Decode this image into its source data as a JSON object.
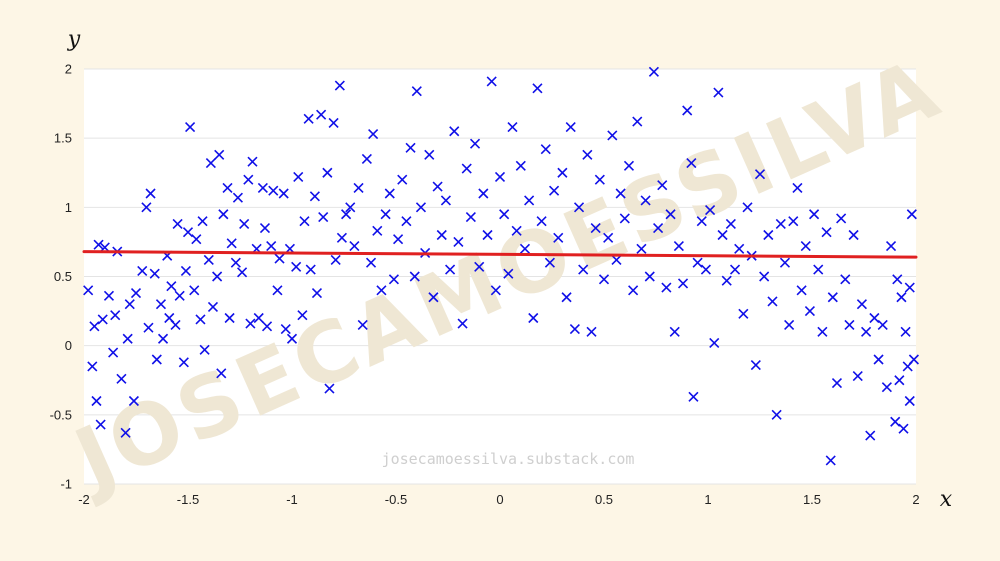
{
  "watermark": "JOSECAMOESSILVA",
  "site_url": "josecamoessilva.substack.com",
  "chart_data": {
    "type": "scatter",
    "xlabel": "x",
    "ylabel": "y",
    "xlim": [
      -2,
      2
    ],
    "ylim": [
      -1,
      2
    ],
    "x_ticks": [
      -2,
      -1.5,
      -1,
      -0.5,
      0,
      0.5,
      1,
      1.5,
      2
    ],
    "x_tick_labels": [
      "-2",
      "-1.5",
      "-1",
      "-0.5",
      "0",
      "0.5",
      "1",
      "1.5",
      "2"
    ],
    "y_ticks": [
      -1,
      -0.5,
      0,
      0.5,
      1,
      1.5,
      2
    ],
    "y_tick_labels": [
      "-1",
      "-0.5",
      "0",
      "0.5",
      "1",
      "1.5",
      "2"
    ],
    "grid": {
      "x": false,
      "y": true
    },
    "marker": "x",
    "colors": {
      "points": "#1010e8",
      "fit_line": "#e02020",
      "grid": "#e4e4e4",
      "plot_bg": "#ffffff",
      "page_bg": "#fdf6e6"
    },
    "fit_line": {
      "x": [
        -2,
        2
      ],
      "y": [
        0.68,
        0.64
      ]
    },
    "points": [
      {
        "x": -1.98,
        "y": 0.4
      },
      {
        "x": -1.96,
        "y": -0.15
      },
      {
        "x": -1.95,
        "y": 0.14
      },
      {
        "x": -1.94,
        "y": -0.4
      },
      {
        "x": -1.93,
        "y": 0.73
      },
      {
        "x": -1.92,
        "y": -0.57
      },
      {
        "x": -1.91,
        "y": 0.19
      },
      {
        "x": -1.9,
        "y": 0.71
      },
      {
        "x": -1.88,
        "y": 0.36
      },
      {
        "x": -1.86,
        "y": -0.05
      },
      {
        "x": -1.85,
        "y": 0.22
      },
      {
        "x": -1.84,
        "y": 0.68
      },
      {
        "x": -1.82,
        "y": -0.24
      },
      {
        "x": -1.8,
        "y": -0.63
      },
      {
        "x": -1.79,
        "y": 0.05
      },
      {
        "x": -1.78,
        "y": 0.3
      },
      {
        "x": -1.76,
        "y": -0.4
      },
      {
        "x": -1.75,
        "y": 0.38
      },
      {
        "x": -1.72,
        "y": 0.54
      },
      {
        "x": -1.7,
        "y": 1.0
      },
      {
        "x": -1.69,
        "y": 0.13
      },
      {
        "x": -1.68,
        "y": 1.1
      },
      {
        "x": -1.66,
        "y": 0.52
      },
      {
        "x": -1.65,
        "y": -0.1
      },
      {
        "x": -1.63,
        "y": 0.3
      },
      {
        "x": -1.62,
        "y": 0.05
      },
      {
        "x": -1.6,
        "y": 0.65
      },
      {
        "x": -1.59,
        "y": 0.2
      },
      {
        "x": -1.58,
        "y": 0.43
      },
      {
        "x": -1.56,
        "y": 0.15
      },
      {
        "x": -1.55,
        "y": 0.88
      },
      {
        "x": -1.54,
        "y": 0.36
      },
      {
        "x": -1.52,
        "y": -0.12
      },
      {
        "x": -1.51,
        "y": 0.54
      },
      {
        "x": -1.5,
        "y": 0.82
      },
      {
        "x": -1.49,
        "y": 1.58
      },
      {
        "x": -1.47,
        "y": 0.4
      },
      {
        "x": -1.46,
        "y": 0.77
      },
      {
        "x": -1.44,
        "y": 0.19
      },
      {
        "x": -1.43,
        "y": 0.9
      },
      {
        "x": -1.42,
        "y": -0.03
      },
      {
        "x": -1.4,
        "y": 0.62
      },
      {
        "x": -1.39,
        "y": 1.32
      },
      {
        "x": -1.38,
        "y": 0.28
      },
      {
        "x": -1.36,
        "y": 0.5
      },
      {
        "x": -1.35,
        "y": 1.38
      },
      {
        "x": -1.34,
        "y": -0.2
      },
      {
        "x": -1.33,
        "y": 0.95
      },
      {
        "x": -1.31,
        "y": 1.14
      },
      {
        "x": -1.3,
        "y": 0.2
      },
      {
        "x": -1.29,
        "y": 0.74
      },
      {
        "x": -1.27,
        "y": 0.6
      },
      {
        "x": -1.26,
        "y": 1.07
      },
      {
        "x": -1.24,
        "y": 0.53
      },
      {
        "x": -1.23,
        "y": 0.88
      },
      {
        "x": -1.21,
        "y": 1.2
      },
      {
        "x": -1.2,
        "y": 0.16
      },
      {
        "x": -1.19,
        "y": 1.33
      },
      {
        "x": -1.17,
        "y": 0.7
      },
      {
        "x": -1.16,
        "y": 0.2
      },
      {
        "x": -1.14,
        "y": 1.14
      },
      {
        "x": -1.13,
        "y": 0.85
      },
      {
        "x": -1.12,
        "y": 0.14
      },
      {
        "x": -1.1,
        "y": 0.72
      },
      {
        "x": -1.09,
        "y": 1.12
      },
      {
        "x": -1.07,
        "y": 0.4
      },
      {
        "x": -1.06,
        "y": 0.63
      },
      {
        "x": -1.04,
        "y": 1.1
      },
      {
        "x": -1.03,
        "y": 0.12
      },
      {
        "x": -1.01,
        "y": 0.7
      },
      {
        "x": -1.0,
        "y": 0.05
      },
      {
        "x": -0.98,
        "y": 0.57
      },
      {
        "x": -0.97,
        "y": 1.22
      },
      {
        "x": -0.95,
        "y": 0.22
      },
      {
        "x": -0.94,
        "y": 0.9
      },
      {
        "x": -0.92,
        "y": 1.64
      },
      {
        "x": -0.91,
        "y": 0.55
      },
      {
        "x": -0.89,
        "y": 1.08
      },
      {
        "x": -0.88,
        "y": 0.38
      },
      {
        "x": -0.86,
        "y": 1.67
      },
      {
        "x": -0.85,
        "y": 0.93
      },
      {
        "x": -0.83,
        "y": 1.25
      },
      {
        "x": -0.82,
        "y": -0.31
      },
      {
        "x": -0.8,
        "y": 1.61
      },
      {
        "x": -0.79,
        "y": 0.62
      },
      {
        "x": -0.77,
        "y": 1.88
      },
      {
        "x": -0.76,
        "y": 0.78
      },
      {
        "x": -0.74,
        "y": 0.95
      },
      {
        "x": -0.72,
        "y": 1.0
      },
      {
        "x": -0.7,
        "y": 0.72
      },
      {
        "x": -0.68,
        "y": 1.14
      },
      {
        "x": -0.66,
        "y": 0.15
      },
      {
        "x": -0.64,
        "y": 1.35
      },
      {
        "x": -0.62,
        "y": 0.6
      },
      {
        "x": -0.61,
        "y": 1.53
      },
      {
        "x": -0.59,
        "y": 0.83
      },
      {
        "x": -0.57,
        "y": 0.4
      },
      {
        "x": -0.55,
        "y": 0.95
      },
      {
        "x": -0.53,
        "y": 1.1
      },
      {
        "x": -0.51,
        "y": 0.48
      },
      {
        "x": -0.49,
        "y": 0.77
      },
      {
        "x": -0.47,
        "y": 1.2
      },
      {
        "x": -0.45,
        "y": 0.9
      },
      {
        "x": -0.43,
        "y": 1.43
      },
      {
        "x": -0.41,
        "y": 0.5
      },
      {
        "x": -0.4,
        "y": 1.84
      },
      {
        "x": -0.38,
        "y": 1.0
      },
      {
        "x": -0.36,
        "y": 0.67
      },
      {
        "x": -0.34,
        "y": 1.38
      },
      {
        "x": -0.32,
        "y": 0.35
      },
      {
        "x": -0.3,
        "y": 1.15
      },
      {
        "x": -0.28,
        "y": 0.8
      },
      {
        "x": -0.26,
        "y": 1.05
      },
      {
        "x": -0.24,
        "y": 0.55
      },
      {
        "x": -0.22,
        "y": 1.55
      },
      {
        "x": -0.2,
        "y": 0.75
      },
      {
        "x": -0.18,
        "y": 0.16
      },
      {
        "x": -0.16,
        "y": 1.28
      },
      {
        "x": -0.14,
        "y": 0.93
      },
      {
        "x": -0.12,
        "y": 1.46
      },
      {
        "x": -0.1,
        "y": 0.57
      },
      {
        "x": -0.08,
        "y": 1.1
      },
      {
        "x": -0.06,
        "y": 0.8
      },
      {
        "x": -0.04,
        "y": 1.91
      },
      {
        "x": -0.02,
        "y": 0.4
      },
      {
        "x": 0.0,
        "y": 1.22
      },
      {
        "x": 0.02,
        "y": 0.95
      },
      {
        "x": 0.04,
        "y": 0.52
      },
      {
        "x": 0.06,
        "y": 1.58
      },
      {
        "x": 0.08,
        "y": 0.83
      },
      {
        "x": 0.1,
        "y": 1.3
      },
      {
        "x": 0.12,
        "y": 0.7
      },
      {
        "x": 0.14,
        "y": 1.05
      },
      {
        "x": 0.16,
        "y": 0.2
      },
      {
        "x": 0.18,
        "y": 1.86
      },
      {
        "x": 0.2,
        "y": 0.9
      },
      {
        "x": 0.22,
        "y": 1.42
      },
      {
        "x": 0.24,
        "y": 0.6
      },
      {
        "x": 0.26,
        "y": 1.12
      },
      {
        "x": 0.28,
        "y": 0.78
      },
      {
        "x": 0.3,
        "y": 1.25
      },
      {
        "x": 0.32,
        "y": 0.35
      },
      {
        "x": 0.34,
        "y": 1.58
      },
      {
        "x": 0.36,
        "y": 0.12
      },
      {
        "x": 0.38,
        "y": 1.0
      },
      {
        "x": 0.4,
        "y": 0.55
      },
      {
        "x": 0.42,
        "y": 1.38
      },
      {
        "x": 0.44,
        "y": 0.1
      },
      {
        "x": 0.46,
        "y": 0.85
      },
      {
        "x": 0.48,
        "y": 1.2
      },
      {
        "x": 0.5,
        "y": 0.48
      },
      {
        "x": 0.52,
        "y": 0.78
      },
      {
        "x": 0.54,
        "y": 1.52
      },
      {
        "x": 0.56,
        "y": 0.62
      },
      {
        "x": 0.58,
        "y": 1.1
      },
      {
        "x": 0.6,
        "y": 0.92
      },
      {
        "x": 0.62,
        "y": 1.3
      },
      {
        "x": 0.64,
        "y": 0.4
      },
      {
        "x": 0.66,
        "y": 1.62
      },
      {
        "x": 0.68,
        "y": 0.7
      },
      {
        "x": 0.7,
        "y": 1.05
      },
      {
        "x": 0.72,
        "y": 0.5
      },
      {
        "x": 0.74,
        "y": 1.98
      },
      {
        "x": 0.76,
        "y": 0.85
      },
      {
        "x": 0.78,
        "y": 1.16
      },
      {
        "x": 0.8,
        "y": 0.42
      },
      {
        "x": 0.82,
        "y": 0.95
      },
      {
        "x": 0.84,
        "y": 0.1
      },
      {
        "x": 0.86,
        "y": 0.72
      },
      {
        "x": 0.88,
        "y": 0.45
      },
      {
        "x": 0.9,
        "y": 1.7
      },
      {
        "x": 0.92,
        "y": 1.32
      },
      {
        "x": 0.93,
        "y": -0.37
      },
      {
        "x": 0.95,
        "y": 0.6
      },
      {
        "x": 0.97,
        "y": 0.9
      },
      {
        "x": 0.99,
        "y": 0.55
      },
      {
        "x": 1.01,
        "y": 0.98
      },
      {
        "x": 1.03,
        "y": 0.02
      },
      {
        "x": 1.05,
        "y": 1.83
      },
      {
        "x": 1.07,
        "y": 0.8
      },
      {
        "x": 1.09,
        "y": 0.47
      },
      {
        "x": 1.11,
        "y": 0.88
      },
      {
        "x": 1.13,
        "y": 0.55
      },
      {
        "x": 1.15,
        "y": 0.7
      },
      {
        "x": 1.17,
        "y": 0.23
      },
      {
        "x": 1.19,
        "y": 1.0
      },
      {
        "x": 1.21,
        "y": 0.65
      },
      {
        "x": 1.23,
        "y": -0.14
      },
      {
        "x": 1.25,
        "y": 1.24
      },
      {
        "x": 1.27,
        "y": 0.5
      },
      {
        "x": 1.29,
        "y": 0.8
      },
      {
        "x": 1.31,
        "y": 0.32
      },
      {
        "x": 1.33,
        "y": -0.5
      },
      {
        "x": 1.35,
        "y": 0.88
      },
      {
        "x": 1.37,
        "y": 0.6
      },
      {
        "x": 1.39,
        "y": 0.15
      },
      {
        "x": 1.41,
        "y": 0.9
      },
      {
        "x": 1.43,
        "y": 1.14
      },
      {
        "x": 1.45,
        "y": 0.4
      },
      {
        "x": 1.47,
        "y": 0.72
      },
      {
        "x": 1.49,
        "y": 0.25
      },
      {
        "x": 1.51,
        "y": 0.95
      },
      {
        "x": 1.53,
        "y": 0.55
      },
      {
        "x": 1.55,
        "y": 0.1
      },
      {
        "x": 1.57,
        "y": 0.82
      },
      {
        "x": 1.59,
        "y": -0.83
      },
      {
        "x": 1.6,
        "y": 0.35
      },
      {
        "x": 1.62,
        "y": -0.27
      },
      {
        "x": 1.64,
        "y": 0.92
      },
      {
        "x": 1.66,
        "y": 0.48
      },
      {
        "x": 1.68,
        "y": 0.15
      },
      {
        "x": 1.7,
        "y": 0.8
      },
      {
        "x": 1.72,
        "y": -0.22
      },
      {
        "x": 1.74,
        "y": 0.3
      },
      {
        "x": 1.76,
        "y": 0.1
      },
      {
        "x": 1.78,
        "y": -0.65
      },
      {
        "x": 1.8,
        "y": 0.2
      },
      {
        "x": 1.82,
        "y": -0.1
      },
      {
        "x": 1.84,
        "y": 0.15
      },
      {
        "x": 1.86,
        "y": -0.3
      },
      {
        "x": 1.88,
        "y": 0.72
      },
      {
        "x": 1.9,
        "y": -0.55
      },
      {
        "x": 1.91,
        "y": 0.48
      },
      {
        "x": 1.92,
        "y": -0.25
      },
      {
        "x": 1.93,
        "y": 0.35
      },
      {
        "x": 1.94,
        "y": -0.6
      },
      {
        "x": 1.95,
        "y": 0.1
      },
      {
        "x": 1.96,
        "y": -0.15
      },
      {
        "x": 1.97,
        "y": 0.42
      },
      {
        "x": 1.98,
        "y": 0.95
      },
      {
        "x": 1.99,
        "y": -0.1
      },
      {
        "x": 1.97,
        "y": -0.4
      }
    ]
  }
}
